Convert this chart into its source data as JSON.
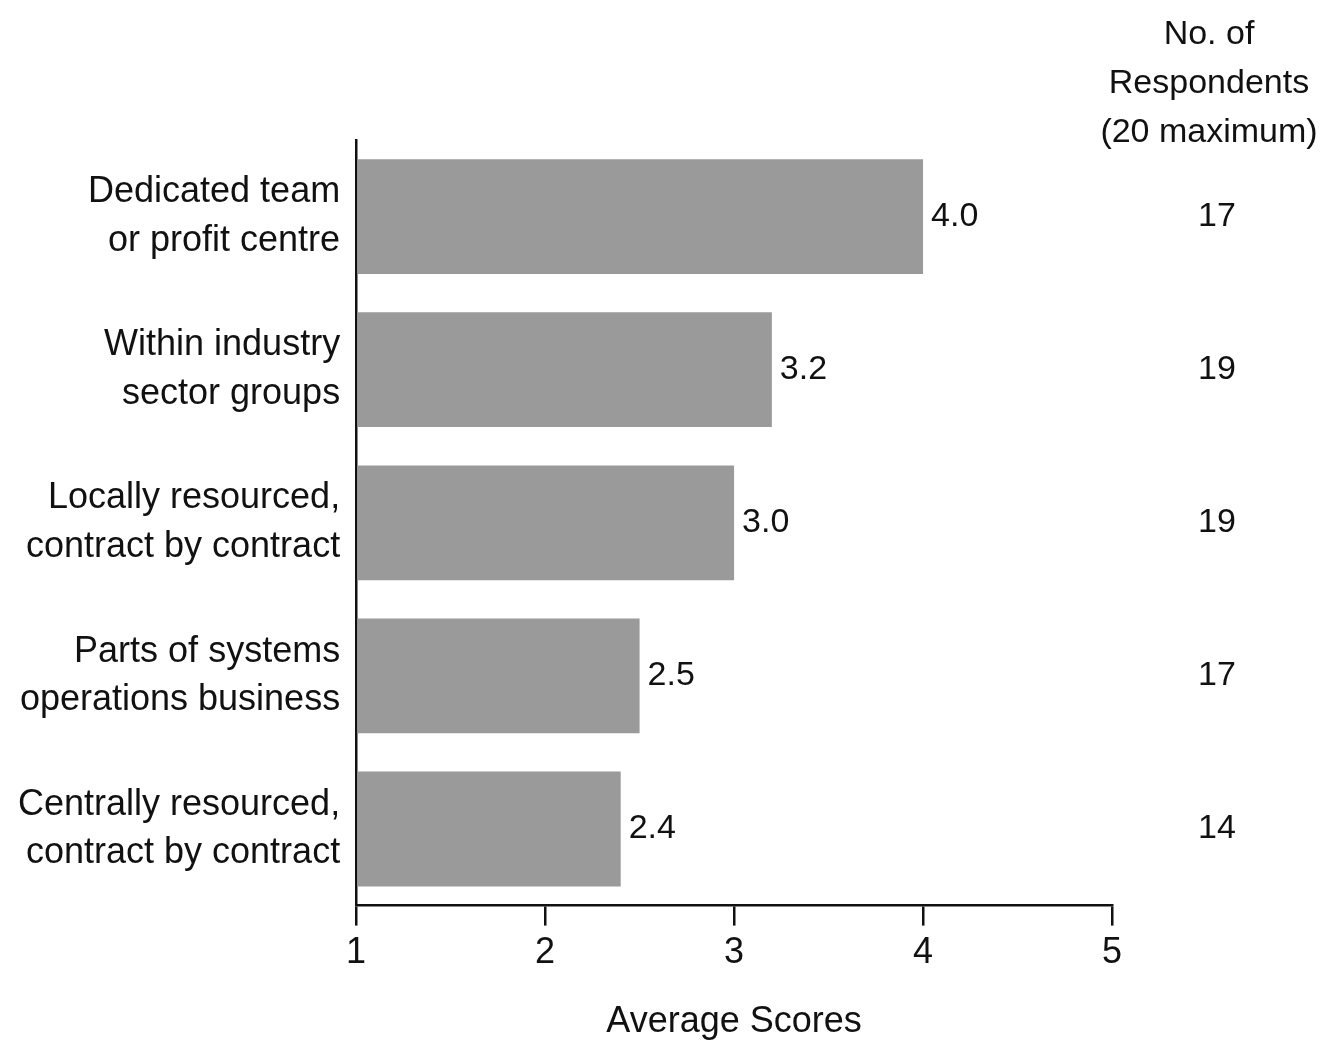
{
  "chart_data": {
    "type": "bar",
    "orientation": "horizontal",
    "xlabel": "Average Scores",
    "categories": [
      "Dedicated team\nor profit centre",
      "Within industry\nsector groups",
      "Locally resourced,\ncontract by contract",
      "Parts of systems\noperations business",
      "Centrally resourced,\ncontract by contract"
    ],
    "values": [
      4.0,
      3.2,
      3.0,
      2.5,
      2.4
    ],
    "value_labels": [
      "4.0",
      "3.2",
      "3.0",
      "2.5",
      "2.4"
    ],
    "color": "#9a9a9a",
    "xlim": [
      1,
      5
    ],
    "xticks": [
      1,
      2,
      3,
      4,
      5
    ],
    "grid": false,
    "legend": false,
    "annotations": [
      "No. of\nRespondents\n(20 maximum)",
      "17",
      "19",
      "19",
      "17",
      "14"
    ]
  }
}
